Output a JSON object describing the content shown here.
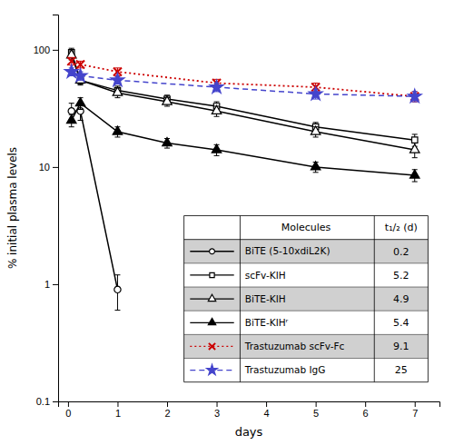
{
  "chart_data": {
    "type": "line",
    "x_label": "days",
    "y_label": "% initial plasma levels",
    "log": "y",
    "xlim": [
      -0.2,
      7.5
    ],
    "xticks": [
      0,
      1,
      2,
      3,
      4,
      5,
      6,
      7
    ],
    "ylim": [
      0.1,
      200
    ],
    "yticks": [
      0.1,
      1,
      10,
      100
    ],
    "legend": "lower right",
    "legend_headers": [
      "Molecules",
      "t₁/₂ (d)"
    ],
    "series": [
      {
        "name": "BiTE (5-10xdiL2K)",
        "t_half": 0.2,
        "x": [
          0.07,
          0.25,
          1.0
        ],
        "values": [
          30,
          30,
          0.9
        ],
        "errors": [
          5,
          5,
          0.3
        ],
        "color": "#000000",
        "line_style": "solid",
        "marker": "circle-open"
      },
      {
        "name": "scFv-KIH",
        "t_half": 5.2,
        "x": [
          0.07,
          0.25,
          1.0,
          2.0,
          3.0,
          5.0,
          7.0
        ],
        "values": [
          95,
          55,
          45,
          38,
          33,
          22,
          17
        ],
        "errors": [
          8,
          4,
          4,
          3,
          3,
          2,
          2
        ],
        "color": "#000000",
        "line_style": "solid",
        "marker": "square-open"
      },
      {
        "name": "BiTE-KIH",
        "t_half": 4.9,
        "x": [
          0.07,
          0.25,
          1.0,
          2.0,
          3.0,
          5.0,
          7.0
        ],
        "values": [
          90,
          55,
          43,
          36,
          30,
          20,
          14
        ],
        "errors": [
          8,
          5,
          4,
          3,
          3,
          2,
          2
        ],
        "color": "#000000",
        "line_style": "solid",
        "marker": "triangle-open"
      },
      {
        "name": "BiTE-KIHʳ",
        "t_half": 5.4,
        "x": [
          0.07,
          0.25,
          1.0,
          2.0,
          3.0,
          5.0,
          7.0
        ],
        "values": [
          25,
          35,
          20,
          16,
          14,
          10,
          8.5
        ],
        "errors": [
          3,
          4,
          2,
          1.5,
          1.5,
          1,
          1
        ],
        "color": "#000000",
        "line_style": "solid",
        "marker": "triangle"
      },
      {
        "name": "Trastuzumab scFv-Fc",
        "t_half": 9.1,
        "x": [
          0.07,
          0.25,
          1.0,
          3.0,
          5.0,
          7.0
        ],
        "values": [
          80,
          75,
          65,
          52,
          48,
          40
        ],
        "errors": [
          6,
          5,
          5,
          4,
          4,
          4
        ],
        "color": "#cc0000",
        "line_style": "dotted",
        "marker": "x"
      },
      {
        "name": "Trastuzumab IgG",
        "t_half": 25,
        "x": [
          0.07,
          0.25,
          1.0,
          3.0,
          5.0,
          7.0
        ],
        "values": [
          65,
          60,
          55,
          48,
          42,
          40
        ],
        "errors": [
          5,
          5,
          4,
          4,
          4,
          4
        ],
        "color": "#4444cc",
        "line_style": "dashed",
        "marker": "star"
      }
    ]
  }
}
